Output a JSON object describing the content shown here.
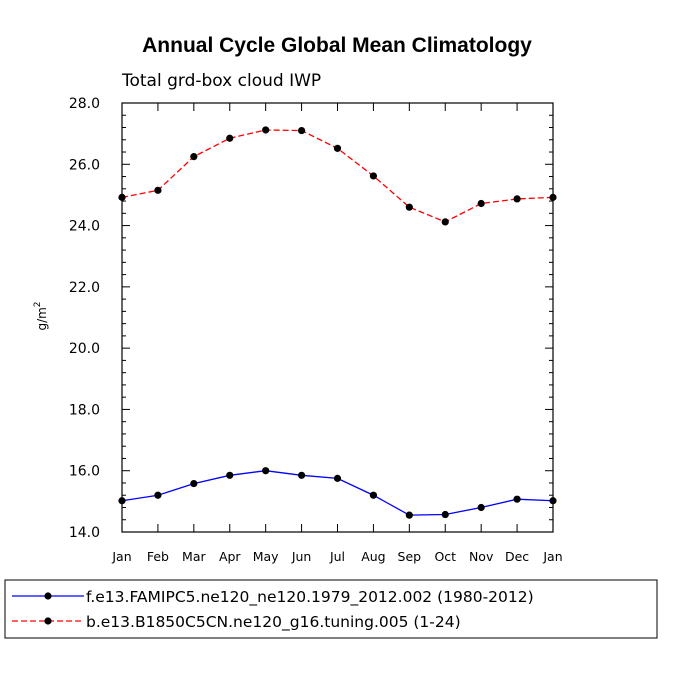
{
  "chart_data": {
    "type": "line",
    "title": "Annual Cycle Global Mean Climatology",
    "subtitle": "Total grd-box cloud IWP",
    "ylabel": "g/m",
    "ylabel_sup": "2",
    "xlabel": "",
    "ylim": [
      14.0,
      28.0
    ],
    "yticks": [
      "14.0",
      "16.0",
      "18.0",
      "20.0",
      "22.0",
      "24.0",
      "26.0",
      "28.0"
    ],
    "categories": [
      "Jan",
      "Feb",
      "Mar",
      "Apr",
      "May",
      "Jun",
      "Jul",
      "Aug",
      "Sep",
      "Oct",
      "Nov",
      "Dec",
      "Jan"
    ],
    "series": [
      {
        "name": "f.e13.FAMIPC5.ne120_ne120.1979_2012.002 (1980-2012)",
        "color": "#0000ff",
        "dash": "solid",
        "values": [
          15.02,
          15.2,
          15.58,
          15.85,
          16.0,
          15.85,
          15.75,
          15.2,
          14.55,
          14.57,
          14.8,
          15.07,
          15.02
        ]
      },
      {
        "name": "b.e13.B1850C5CN.ne120_g16.tuning.005 (1-24)",
        "color": "#ff0000",
        "dash": "dashed",
        "values": [
          24.92,
          25.15,
          26.25,
          26.85,
          27.12,
          27.1,
          26.52,
          25.62,
          24.6,
          24.12,
          24.72,
          24.87,
          24.92
        ]
      }
    ],
    "legend_position": "bottom"
  }
}
